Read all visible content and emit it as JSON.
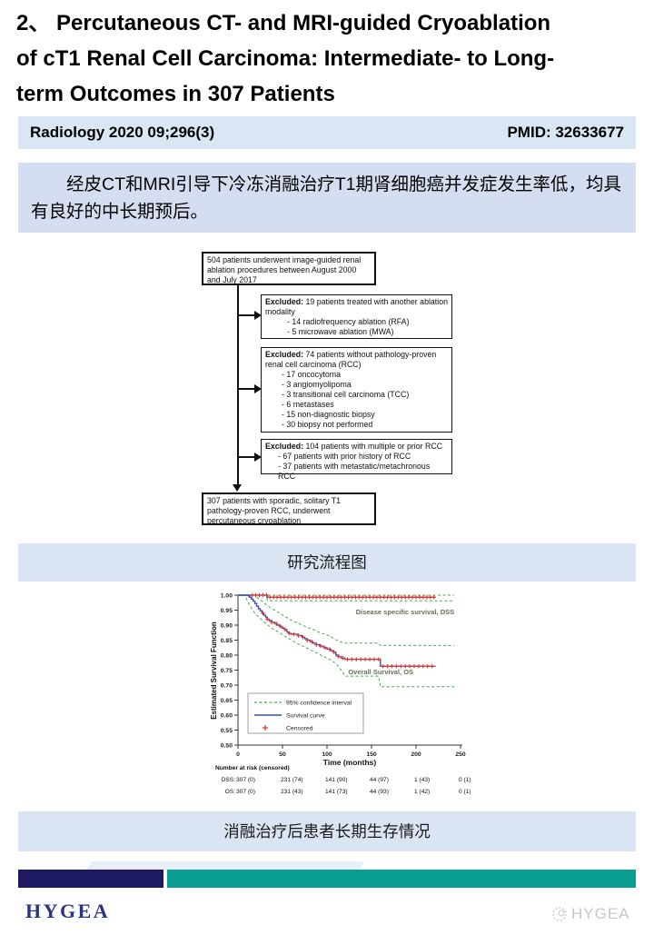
{
  "header": {
    "title_lines": [
      "2、 Percutaneous CT- and MRI-guided Cryoablation",
      "of cT1 Renal Cell Carcinoma: Intermediate- to Long-",
      "term Outcomes in 307 Patients"
    ],
    "journal": "Radiology 2020 09;296(3)",
    "pmid": "PMID: 32633677"
  },
  "summary": {
    "text": "经皮CT和MRI引导下冷冻消融治疗T1期肾细胞癌并发症发生率低，均具有良好的中长期预后。"
  },
  "flowchart": {
    "caption": "研究流程图",
    "boxes": [
      {
        "text": "504 patients underwent image-guided renal ablation procedures between August 2000 and July 2017"
      },
      {
        "label": "Excluded:",
        "text": " 19 patients treated with another ablation modality",
        "items": "- 14 radiofrequency ablation (RFA)\n- 5 microwave ablation (MWA)"
      },
      {
        "label": "Excluded:",
        "text": " 74 patients without pathology-proven renal cell carcinoma (RCC)",
        "items": "- 17 oncocytoma\n- 3 angiomyolipoma\n- 3 transitional cell carcinoma (TCC)\n- 6 metastases\n- 15 non-diagnostic biopsy\n- 30 biopsy not performed"
      },
      {
        "label": "Excluded:",
        "text": " 104 patients with multiple or prior RCC",
        "items": "- 67 patients with prior history of RCC\n- 37 patients with metastatic/metachronous RCC"
      },
      {
        "text": "307 patients with sporadic, solitary T1 pathology-proven RCC, underwent percutaneous cryoablation"
      }
    ]
  },
  "figure": {
    "caption": "消融治疗后患者长期生存情况"
  },
  "chart_data": {
    "type": "line",
    "xlabel": "Time (months)",
    "ylabel": "Estimated Survival Function",
    "xlim": [
      0,
      250
    ],
    "ylim": [
      0.5,
      1.0
    ],
    "xticks": [
      0,
      50,
      100,
      150,
      200,
      250
    ],
    "yticks": [
      0.5,
      0.55,
      0.6,
      0.65,
      0.7,
      0.75,
      0.8,
      0.85,
      0.9,
      0.95,
      1.0
    ],
    "legend": [
      "95% confidence interval",
      "Survival curve",
      "Censored"
    ],
    "colors": {
      "survival": "#3a53a4",
      "ci": "#3fae49",
      "censored": "#e8332a"
    },
    "series": [
      {
        "name": "DSS CI upper",
        "color": "#3fae49",
        "dash": "3,2.5",
        "points": [
          [
            0,
            1.0
          ],
          [
            243,
            1.0
          ]
        ]
      },
      {
        "name": "DSS CI lower",
        "color": "#3fae49",
        "dash": "3,2.5",
        "points": [
          [
            0,
            1.0
          ],
          [
            30,
            1.0
          ],
          [
            34,
            0.981
          ],
          [
            243,
            0.981
          ]
        ]
      },
      {
        "name": "OS CI upper",
        "color": "#3fae49",
        "dash": "3,2.5",
        "points": [
          [
            0,
            1.0
          ],
          [
            20,
            1.0
          ],
          [
            22,
            0.99
          ],
          [
            25,
            0.985
          ],
          [
            28,
            0.978
          ],
          [
            31,
            0.97
          ],
          [
            34,
            0.963
          ],
          [
            37,
            0.957
          ],
          [
            40,
            0.952
          ],
          [
            44,
            0.945
          ],
          [
            48,
            0.938
          ],
          [
            52,
            0.93
          ],
          [
            56,
            0.923
          ],
          [
            60,
            0.917
          ],
          [
            64,
            0.911
          ],
          [
            68,
            0.906
          ],
          [
            72,
            0.9
          ],
          [
            76,
            0.895
          ],
          [
            80,
            0.89
          ],
          [
            85,
            0.885
          ],
          [
            90,
            0.878
          ],
          [
            95,
            0.872
          ],
          [
            100,
            0.868
          ],
          [
            104,
            0.862
          ],
          [
            108,
            0.855
          ],
          [
            112,
            0.848
          ],
          [
            116,
            0.843
          ],
          [
            120,
            0.84
          ],
          [
            158,
            0.84
          ],
          [
            160,
            0.832
          ],
          [
            243,
            0.832
          ]
        ]
      },
      {
        "name": "OS CI lower",
        "color": "#3fae49",
        "dash": "3,2.5",
        "points": [
          [
            0,
            1.0
          ],
          [
            8,
            1.0
          ],
          [
            10,
            0.985
          ],
          [
            12,
            0.972
          ],
          [
            14,
            0.962
          ],
          [
            16,
            0.952
          ],
          [
            18,
            0.944
          ],
          [
            20,
            0.937
          ],
          [
            23,
            0.928
          ],
          [
            26,
            0.92
          ],
          [
            29,
            0.912
          ],
          [
            32,
            0.904
          ],
          [
            35,
            0.897
          ],
          [
            38,
            0.89
          ],
          [
            42,
            0.883
          ],
          [
            46,
            0.876
          ],
          [
            50,
            0.868
          ],
          [
            54,
            0.861
          ],
          [
            58,
            0.854
          ],
          [
            62,
            0.847
          ],
          [
            66,
            0.84
          ],
          [
            70,
            0.834
          ],
          [
            75,
            0.827
          ],
          [
            80,
            0.82
          ],
          [
            85,
            0.812
          ],
          [
            90,
            0.805
          ],
          [
            95,
            0.797
          ],
          [
            100,
            0.79
          ],
          [
            105,
            0.782
          ],
          [
            110,
            0.772
          ],
          [
            114,
            0.758
          ],
          [
            118,
            0.742
          ],
          [
            120,
            0.73
          ],
          [
            158,
            0.73
          ],
          [
            160,
            0.695
          ],
          [
            243,
            0.695
          ]
        ]
      },
      {
        "name": "DSS survival",
        "color": "#3a53a4",
        "width": 1.4,
        "step": true,
        "points": [
          [
            0,
            1.0
          ],
          [
            30,
            1.0
          ],
          [
            33,
            0.993
          ],
          [
            222,
            0.993
          ]
        ]
      },
      {
        "name": "OS survival",
        "color": "#3a53a4",
        "width": 1.4,
        "step": true,
        "points": [
          [
            0,
            1.0
          ],
          [
            11,
            1.0
          ],
          [
            12,
            0.997
          ],
          [
            13,
            0.993
          ],
          [
            15,
            0.987
          ],
          [
            17,
            0.98
          ],
          [
            19,
            0.972
          ],
          [
            21,
            0.963
          ],
          [
            23,
            0.955
          ],
          [
            25,
            0.948
          ],
          [
            27,
            0.94
          ],
          [
            29,
            0.933
          ],
          [
            31,
            0.927
          ],
          [
            33,
            0.92
          ],
          [
            35,
            0.915
          ],
          [
            38,
            0.91
          ],
          [
            41,
            0.905
          ],
          [
            44,
            0.9
          ],
          [
            47,
            0.895
          ],
          [
            50,
            0.89
          ],
          [
            53,
            0.885
          ],
          [
            55,
            0.877
          ],
          [
            57,
            0.872
          ],
          [
            60,
            0.87
          ],
          [
            68,
            0.865
          ],
          [
            72,
            0.86
          ],
          [
            75,
            0.855
          ],
          [
            78,
            0.85
          ],
          [
            81,
            0.845
          ],
          [
            84,
            0.84
          ],
          [
            88,
            0.835
          ],
          [
            92,
            0.83
          ],
          [
            96,
            0.825
          ],
          [
            100,
            0.82
          ],
          [
            104,
            0.815
          ],
          [
            107,
            0.81
          ],
          [
            110,
            0.8
          ],
          [
            113,
            0.795
          ],
          [
            116,
            0.79
          ],
          [
            120,
            0.786
          ],
          [
            158,
            0.786
          ],
          [
            160,
            0.763
          ],
          [
            222,
            0.763
          ]
        ]
      }
    ],
    "censor_marks": [
      {
        "series": "DSS survival",
        "months": [
          16,
          20,
          24,
          28,
          32,
          36,
          40,
          44,
          48,
          52,
          56,
          60,
          64,
          68,
          72,
          76,
          80,
          84,
          88,
          92,
          96,
          100,
          104,
          108,
          112,
          116,
          120,
          124,
          128,
          132,
          136,
          140,
          144,
          148,
          152,
          156,
          160,
          164,
          168,
          172,
          176,
          180,
          184,
          188,
          192,
          196,
          200,
          204,
          208,
          212,
          216,
          220
        ]
      },
      {
        "series": "OS survival",
        "months": [
          28,
          33,
          38,
          43,
          48,
          53,
          58,
          63,
          68,
          73,
          78,
          83,
          88,
          93,
          98,
          103,
          108,
          113,
          118,
          123,
          128,
          133,
          138,
          143,
          148,
          153,
          158,
          163,
          168,
          173,
          178,
          183,
          188,
          193,
          198,
          203,
          208,
          213,
          218
        ]
      }
    ],
    "annotations": [
      {
        "text": "Disease specific survival, DSS",
        "x": 243,
        "y": 0.936,
        "anchor": "end"
      },
      {
        "text": "Overall Survival, OS",
        "x": 197,
        "y": 0.736,
        "anchor": "end"
      }
    ],
    "risk_table": {
      "header": "Number at risk (censored)",
      "rows": [
        {
          "label": "DSS:",
          "values": [
            "307 (0)",
            "231 (74)",
            "141 (90)",
            "44 (97)",
            "1 (43)",
            "0 (1)"
          ]
        },
        {
          "label": "OS:",
          "values": [
            "307 (0)",
            "231 (43)",
            "141 (73)",
            "44 (93)",
            "1 (42)",
            "0 (1)"
          ]
        }
      ]
    }
  },
  "footer": {
    "logo": "HYGEA",
    "watermark": "HYGEA"
  }
}
